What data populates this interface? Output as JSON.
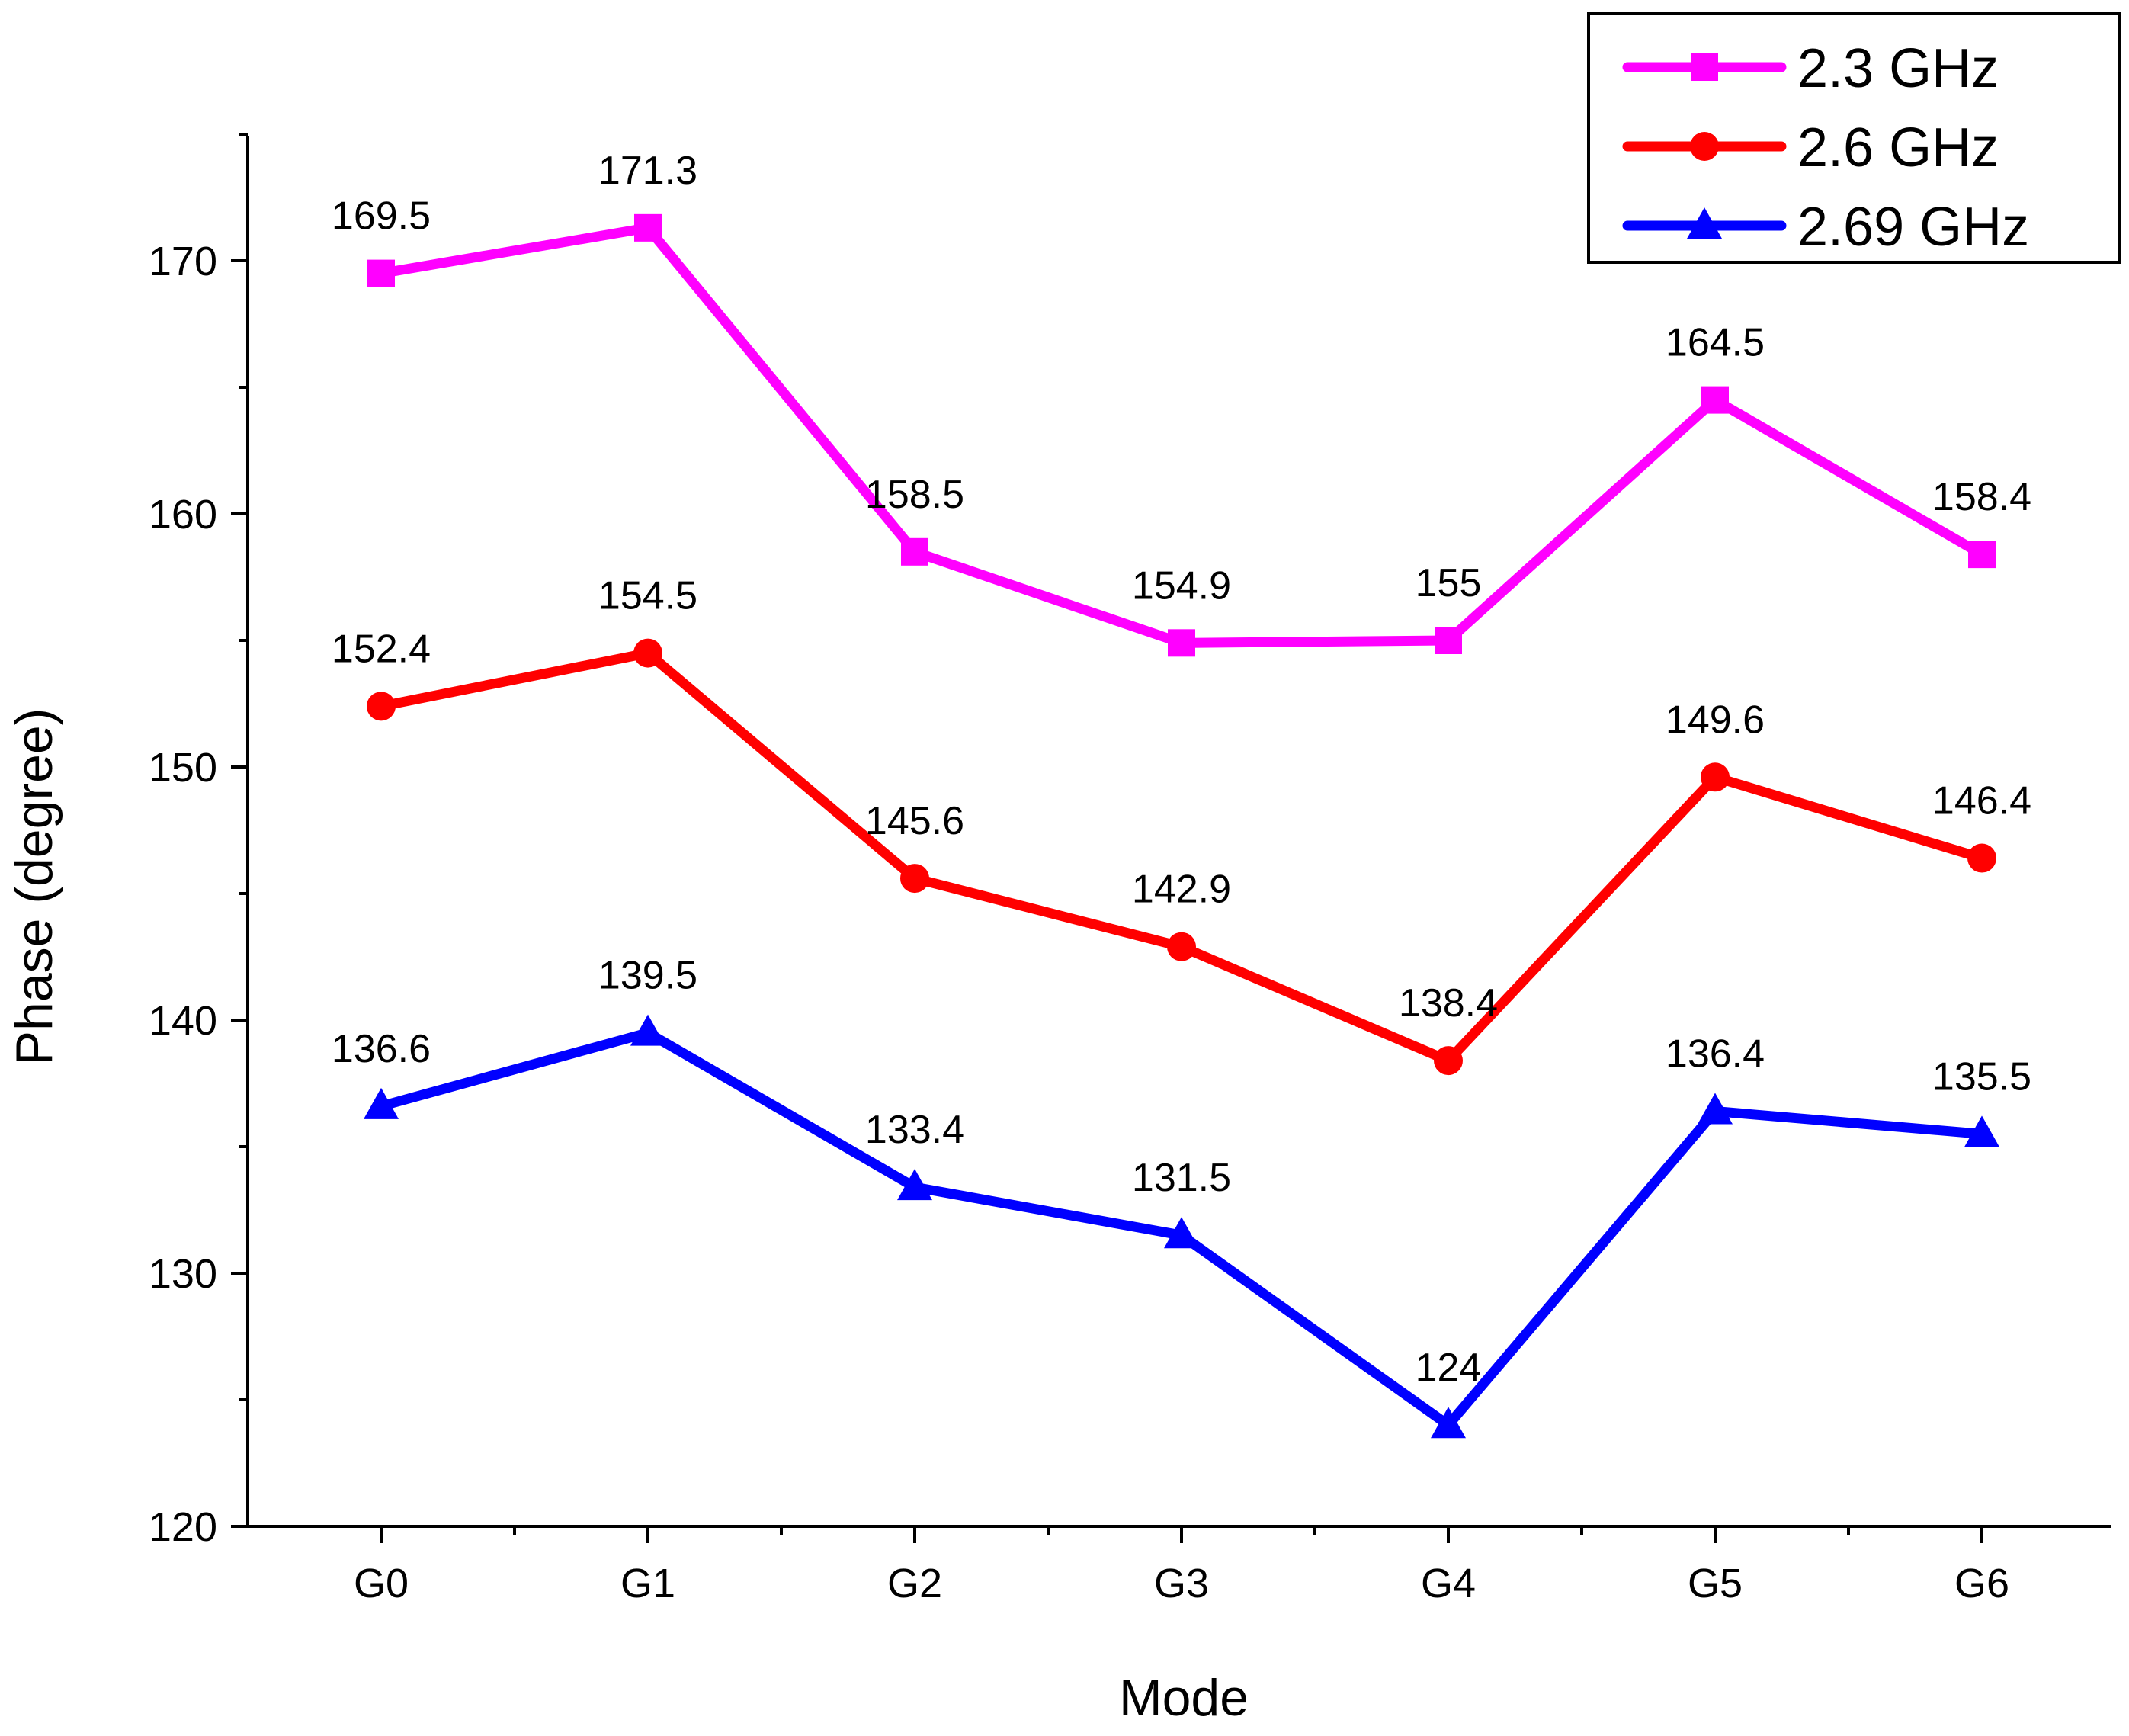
{
  "chart_data": {
    "type": "line",
    "title": "",
    "xlabel": "Mode",
    "ylabel": "Phase (degree)",
    "categories": [
      "G0",
      "G1",
      "G2",
      "G3",
      "G4",
      "G5",
      "G6"
    ],
    "ylim": [
      120,
      175
    ],
    "yticks": [
      120,
      130,
      140,
      150,
      160,
      170
    ],
    "grid": false,
    "legend_position": "top-right",
    "series": [
      {
        "name": "2.3 GHz",
        "color": "#ff00ff",
        "marker": "square",
        "values": [
          169.5,
          171.3,
          158.5,
          154.9,
          155,
          164.5,
          158.4
        ],
        "labels": [
          "169.5",
          "171.3",
          "158.5",
          "154.9",
          "155",
          "164.5",
          "158.4"
        ]
      },
      {
        "name": "2.6 GHz",
        "color": "#ff0000",
        "marker": "circle",
        "values": [
          152.4,
          154.5,
          145.6,
          142.9,
          138.4,
          149.6,
          146.4
        ],
        "labels": [
          "152.4",
          "154.5",
          "145.6",
          "142.9",
          "138.4",
          "149.6",
          "146.4"
        ]
      },
      {
        "name": "2.69 GHz",
        "color": "#0000ff",
        "marker": "triangle",
        "values": [
          136.6,
          139.5,
          133.4,
          131.5,
          124,
          136.4,
          135.5
        ],
        "labels": [
          "136.6",
          "139.5",
          "133.4",
          "131.5",
          "124",
          "136.4",
          "135.5"
        ]
      }
    ]
  }
}
